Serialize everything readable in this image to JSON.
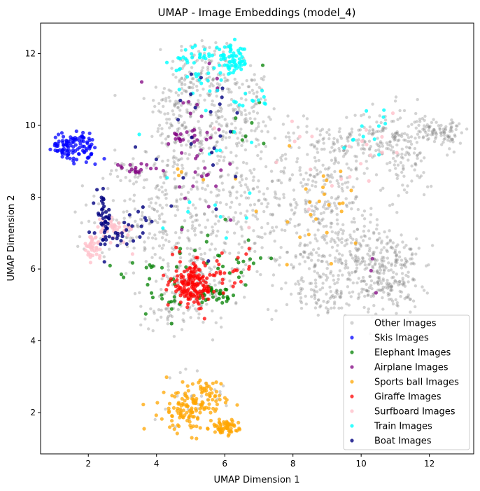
{
  "chart_data": {
    "type": "scatter",
    "title": "UMAP - Image Embeddings (model_4)",
    "xlabel": "UMAP Dimension 1",
    "ylabel": "UMAP Dimension 2",
    "xlim": [
      0.6,
      13.3
    ],
    "ylim": [
      0.85,
      12.85
    ],
    "xticks": [
      2,
      4,
      6,
      8,
      10,
      12
    ],
    "yticks": [
      2,
      4,
      6,
      8,
      10,
      12
    ],
    "grid": false,
    "legend_position": "lower right",
    "series": [
      {
        "name": "Other Images",
        "color": "#808080",
        "opacity": 0.35,
        "clusters": [
          {
            "cx": 5.4,
            "cy": 11.6,
            "sx": 0.5,
            "sy": 0.45,
            "n": 90
          },
          {
            "cx": 4.6,
            "cy": 10.6,
            "sx": 0.45,
            "sy": 0.5,
            "n": 80
          },
          {
            "cx": 5.8,
            "cy": 9.8,
            "sx": 0.7,
            "sy": 0.8,
            "n": 180
          },
          {
            "cx": 6.6,
            "cy": 10.6,
            "sx": 0.4,
            "sy": 0.5,
            "n": 60
          },
          {
            "cx": 4.5,
            "cy": 8.8,
            "sx": 0.5,
            "sy": 0.6,
            "n": 80
          },
          {
            "cx": 5.2,
            "cy": 7.4,
            "sx": 0.9,
            "sy": 0.8,
            "n": 170
          },
          {
            "cx": 6.7,
            "cy": 7.3,
            "sx": 0.5,
            "sy": 0.9,
            "n": 70
          },
          {
            "cx": 5.0,
            "cy": 5.6,
            "sx": 0.7,
            "sy": 0.6,
            "n": 150
          },
          {
            "cx": 4.4,
            "cy": 4.9,
            "sx": 0.3,
            "sy": 0.3,
            "n": 30
          },
          {
            "cx": 8.8,
            "cy": 8.4,
            "sx": 0.8,
            "sy": 0.9,
            "n": 260
          },
          {
            "cx": 8.9,
            "cy": 6.3,
            "sx": 0.8,
            "sy": 0.6,
            "n": 170
          },
          {
            "cx": 9.0,
            "cy": 5.3,
            "sx": 0.6,
            "sy": 0.25,
            "n": 70
          },
          {
            "cx": 10.6,
            "cy": 9.6,
            "sx": 0.7,
            "sy": 0.45,
            "n": 170
          },
          {
            "cx": 11.4,
            "cy": 8.9,
            "sx": 0.3,
            "sy": 0.5,
            "n": 50
          },
          {
            "cx": 12.2,
            "cy": 9.9,
            "sx": 0.35,
            "sy": 0.15,
            "n": 70
          },
          {
            "cx": 12.6,
            "cy": 9.6,
            "sx": 0.15,
            "sy": 0.2,
            "n": 20
          },
          {
            "cx": 10.8,
            "cy": 5.9,
            "sx": 0.45,
            "sy": 0.65,
            "n": 260
          },
          {
            "cx": 10.0,
            "cy": 6.6,
            "sx": 0.3,
            "sy": 0.4,
            "n": 40
          },
          {
            "cx": 2.6,
            "cy": 7.4,
            "sx": 0.6,
            "sy": 0.5,
            "n": 35
          },
          {
            "cx": 3.5,
            "cy": 7.2,
            "sx": 0.6,
            "sy": 0.5,
            "n": 40
          },
          {
            "cx": 3.0,
            "cy": 8.6,
            "sx": 0.5,
            "sy": 0.3,
            "n": 25
          },
          {
            "cx": 5.3,
            "cy": 2.5,
            "sx": 0.5,
            "sy": 0.4,
            "n": 25
          }
        ]
      },
      {
        "name": "Skis Images",
        "color": "#0000ff",
        "opacity": 0.75,
        "clusters": [
          {
            "cx": 1.35,
            "cy": 9.4,
            "sx": 0.2,
            "sy": 0.18,
            "n": 60
          },
          {
            "cx": 1.8,
            "cy": 9.6,
            "sx": 0.15,
            "sy": 0.15,
            "n": 30
          },
          {
            "cx": 2.0,
            "cy": 9.2,
            "sx": 0.18,
            "sy": 0.15,
            "n": 20
          }
        ]
      },
      {
        "name": "Elephant Images",
        "color": "#008000",
        "opacity": 0.75,
        "clusters": [
          {
            "cx": 5.8,
            "cy": 5.3,
            "sx": 0.3,
            "sy": 0.15,
            "n": 30
          },
          {
            "cx": 4.3,
            "cy": 5.4,
            "sx": 0.3,
            "sy": 0.4,
            "n": 20
          },
          {
            "cx": 3.6,
            "cy": 6.0,
            "sx": 0.3,
            "sy": 0.2,
            "n": 10
          },
          {
            "cx": 6.4,
            "cy": 6.2,
            "sx": 0.5,
            "sy": 0.4,
            "n": 15
          },
          {
            "cx": 5.2,
            "cy": 6.5,
            "sx": 0.6,
            "sy": 0.4,
            "n": 10
          },
          {
            "cx": 6.7,
            "cy": 10.0,
            "sx": 0.6,
            "sy": 0.6,
            "n": 8
          }
        ]
      },
      {
        "name": "Airplane Images",
        "color": "#800080",
        "opacity": 0.75,
        "clusters": [
          {
            "cx": 3.4,
            "cy": 8.75,
            "sx": 0.35,
            "sy": 0.1,
            "n": 18
          },
          {
            "cx": 4.6,
            "cy": 9.65,
            "sx": 0.12,
            "sy": 0.1,
            "n": 10
          },
          {
            "cx": 5.3,
            "cy": 9.3,
            "sx": 0.8,
            "sy": 1.2,
            "n": 40
          },
          {
            "cx": 10.4,
            "cy": 6.0,
            "sx": 0.2,
            "sy": 0.5,
            "n": 3
          }
        ]
      },
      {
        "name": "Sports ball Images",
        "color": "#ffa500",
        "opacity": 0.75,
        "clusters": [
          {
            "cx": 5.0,
            "cy": 2.15,
            "sx": 0.45,
            "sy": 0.35,
            "n": 130
          },
          {
            "cx": 6.0,
            "cy": 1.6,
            "sx": 0.2,
            "sy": 0.1,
            "n": 60
          },
          {
            "cx": 5.6,
            "cy": 2.5,
            "sx": 0.2,
            "sy": 0.2,
            "n": 20
          },
          {
            "cx": 8.8,
            "cy": 7.8,
            "sx": 0.9,
            "sy": 0.9,
            "n": 25
          },
          {
            "cx": 4.7,
            "cy": 8.6,
            "sx": 0.3,
            "sy": 0.2,
            "n": 4
          }
        ]
      },
      {
        "name": "Giraffe Images",
        "color": "#ff0000",
        "opacity": 0.75,
        "clusters": [
          {
            "cx": 5.1,
            "cy": 5.55,
            "sx": 0.35,
            "sy": 0.3,
            "n": 150
          },
          {
            "cx": 6.3,
            "cy": 6.1,
            "sx": 0.4,
            "sy": 0.3,
            "n": 15
          },
          {
            "cx": 4.5,
            "cy": 5.8,
            "sx": 0.2,
            "sy": 0.3,
            "n": 10
          }
        ]
      },
      {
        "name": "Surfboard Images",
        "color": "#ffc0cb",
        "opacity": 0.8,
        "clusters": [
          {
            "cx": 2.1,
            "cy": 6.6,
            "sx": 0.15,
            "sy": 0.15,
            "n": 40
          },
          {
            "cx": 2.8,
            "cy": 7.1,
            "sx": 0.3,
            "sy": 0.2,
            "n": 40
          },
          {
            "cx": 8.7,
            "cy": 8.6,
            "sx": 1.0,
            "sy": 0.8,
            "n": 15
          },
          {
            "cx": 10.5,
            "cy": 9.6,
            "sx": 0.6,
            "sy": 0.3,
            "n": 8
          }
        ]
      },
      {
        "name": "Train Images",
        "color": "#00ffff",
        "opacity": 0.8,
        "clusters": [
          {
            "cx": 6.2,
            "cy": 11.8,
            "sx": 0.25,
            "sy": 0.2,
            "n": 70
          },
          {
            "cx": 5.0,
            "cy": 11.9,
            "sx": 0.3,
            "sy": 0.15,
            "n": 25
          },
          {
            "cx": 5.3,
            "cy": 11.2,
            "sx": 0.4,
            "sy": 0.3,
            "n": 15
          },
          {
            "cx": 6.8,
            "cy": 10.7,
            "sx": 0.3,
            "sy": 0.15,
            "n": 12
          },
          {
            "cx": 10.3,
            "cy": 9.5,
            "sx": 0.4,
            "sy": 0.5,
            "n": 12
          },
          {
            "cx": 6.0,
            "cy": 8.6,
            "sx": 1.0,
            "sy": 1.0,
            "n": 15
          }
        ]
      },
      {
        "name": "Boat Images",
        "color": "#000080",
        "opacity": 0.8,
        "clusters": [
          {
            "cx": 2.45,
            "cy": 7.4,
            "sx": 0.1,
            "sy": 0.35,
            "n": 40
          },
          {
            "cx": 2.9,
            "cy": 7.0,
            "sx": 0.35,
            "sy": 0.2,
            "n": 20
          },
          {
            "cx": 3.6,
            "cy": 7.3,
            "sx": 0.2,
            "sy": 0.3,
            "n": 8
          },
          {
            "cx": 5.2,
            "cy": 9.6,
            "sx": 0.8,
            "sy": 1.3,
            "n": 25
          }
        ]
      }
    ]
  }
}
